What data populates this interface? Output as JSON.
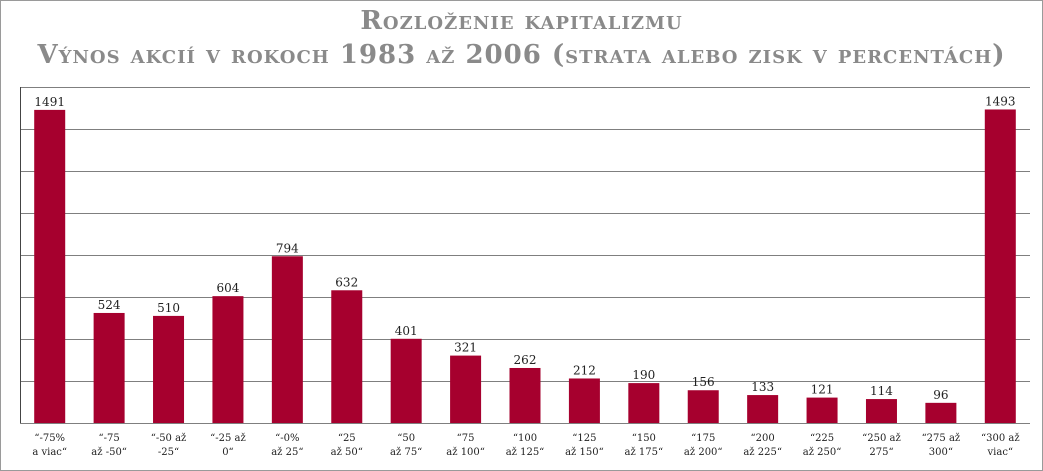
{
  "chart_data": {
    "type": "bar",
    "title": "Rozloženie kapitalizmu",
    "subtitle": "Výnos akcií v rokoch 1983 až 2006 (strata alebo zisk v percentách)",
    "categories": [
      [
        "“-75%",
        "a viac“"
      ],
      [
        "“-75",
        "až -50“"
      ],
      [
        "“-50 až",
        "-25“"
      ],
      [
        "“-25 až",
        "0“"
      ],
      [
        "“-0%",
        "až 25“"
      ],
      [
        "“25",
        "až 50“"
      ],
      [
        "“50",
        "až 75“"
      ],
      [
        "“75",
        "až 100“"
      ],
      [
        "“100",
        "až 125“"
      ],
      [
        "“125",
        "až 150“"
      ],
      [
        "“150",
        "až 175“"
      ],
      [
        "“175",
        "až 200“"
      ],
      [
        "“200",
        "až 225“"
      ],
      [
        "“225",
        "až 250“"
      ],
      [
        "“250 až",
        "275“"
      ],
      [
        "“275 až",
        "300“"
      ],
      [
        "“300 až",
        "viac“"
      ]
    ],
    "values": [
      1491,
      524,
      510,
      604,
      794,
      632,
      401,
      321,
      262,
      212,
      190,
      156,
      133,
      121,
      114,
      96,
      1493
    ],
    "ylim": [
      0,
      1600
    ],
    "ytick_step": 200,
    "grid": true,
    "bar_color": "#a6002e",
    "gridline_color": "#555555",
    "frame_color": "#9a9a9a",
    "legend": "none"
  }
}
